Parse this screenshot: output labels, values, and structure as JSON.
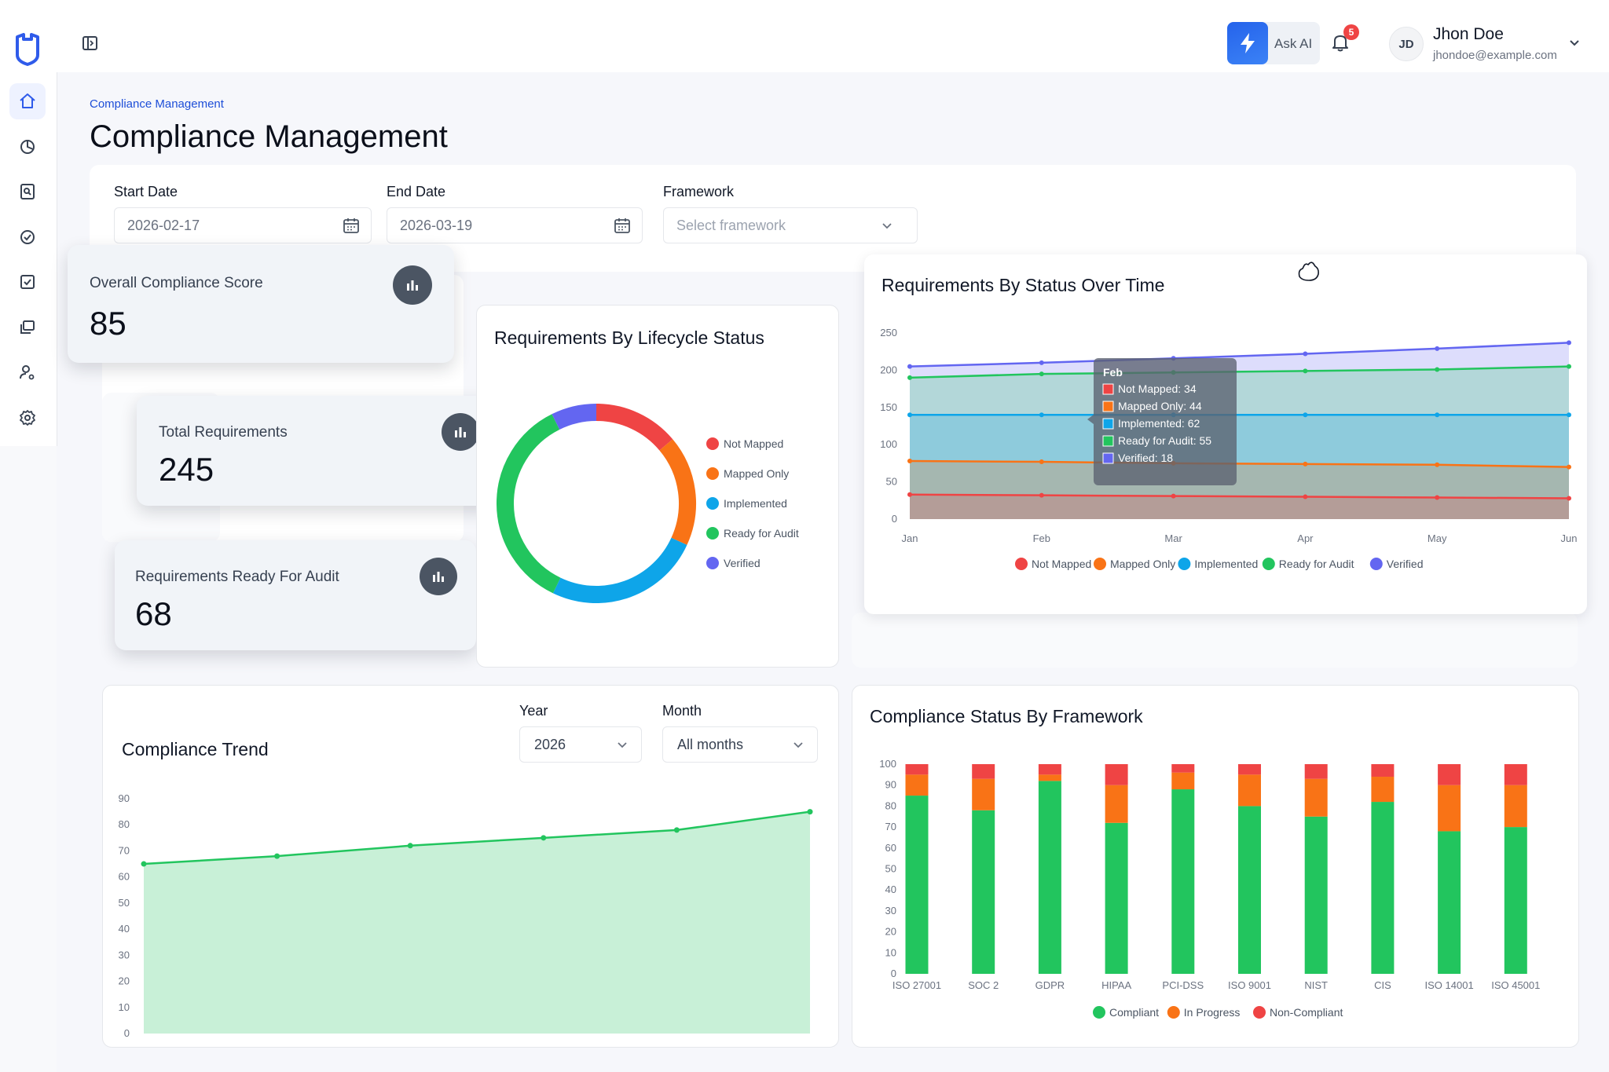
{
  "app": {
    "breadcrumb": "Compliance Management",
    "page_title": "Compliance Management"
  },
  "sidebar": {
    "items": [
      {
        "icon": "home-icon",
        "active": true
      },
      {
        "icon": "pie-chart-icon"
      },
      {
        "icon": "file-search-icon"
      },
      {
        "icon": "check-circle-icon"
      },
      {
        "icon": "check-square-icon"
      },
      {
        "icon": "layers-icon"
      },
      {
        "icon": "user-settings-icon"
      },
      {
        "icon": "gear-icon"
      }
    ]
  },
  "header": {
    "ask_ai_label": "Ask AI",
    "notification_count": "5",
    "user": {
      "initials": "JD",
      "name": "Jhon Doe",
      "email": "jhondoe@example.com"
    }
  },
  "filters": {
    "start_date_label": "Start Date",
    "start_date_value": "2026-02-17",
    "end_date_label": "End Date",
    "end_date_value": "2026-03-19",
    "framework_label": "Framework",
    "framework_placeholder": "Select framework"
  },
  "stats": {
    "overall_score_label": "Overall Compliance Score",
    "overall_score_value": "85",
    "total_requirements_label": "Total Requirements",
    "total_requirements_value": "245",
    "ready_for_audit_label": "Requirements Ready For Audit",
    "ready_for_audit_value": "68"
  },
  "trend_filters": {
    "year_label": "Year",
    "year_value": "2026",
    "month_label": "Month",
    "month_value": "All months"
  },
  "colors": {
    "not_mapped": "#ef4444",
    "mapped_only": "#f97316",
    "implemented": "#0ea5e9",
    "ready_for_audit": "#22c55e",
    "verified": "#6366f1"
  },
  "chart_data": [
    {
      "id": "lifecycle",
      "type": "pie",
      "title": "Requirements By Lifecycle Status",
      "donut": true,
      "legend_position": "right",
      "labels": [
        "Not Mapped",
        "Mapped Only",
        "Implemented",
        "Ready for Audit",
        "Verified"
      ],
      "values": [
        34,
        44,
        62,
        87,
        18
      ]
    },
    {
      "id": "status_over_time",
      "type": "area",
      "title": "Requirements By Status Over Time",
      "categories": [
        "Jan",
        "Feb",
        "Mar",
        "Apr",
        "May",
        "Jun"
      ],
      "ylim": [
        0,
        250
      ],
      "yticks": [
        0,
        50,
        100,
        150,
        200,
        250
      ],
      "legend_position": "bottom",
      "series": [
        {
          "name": "Not Mapped",
          "values": [
            33,
            32,
            31,
            30,
            29,
            28
          ]
        },
        {
          "name": "Mapped Only",
          "values": [
            78,
            77,
            75,
            74,
            73,
            70
          ]
        },
        {
          "name": "Implemented",
          "values": [
            140,
            140,
            140,
            140,
            140,
            140
          ]
        },
        {
          "name": "Ready for Audit",
          "values": [
            190,
            195,
            197,
            199,
            201,
            205
          ]
        },
        {
          "name": "Verified",
          "values": [
            205,
            210,
            216,
            222,
            229,
            237
          ]
        }
      ],
      "tooltip": {
        "title": "Feb",
        "lines": [
          "Not Mapped: 34",
          "Mapped Only: 44",
          "Implemented: 62",
          "Ready for Audit: 55",
          "Verified: 18"
        ]
      }
    },
    {
      "id": "compliance_trend",
      "type": "area",
      "title": "Compliance Trend",
      "x": [
        0,
        1,
        2,
        3,
        4,
        5
      ],
      "values": [
        65,
        68,
        72,
        75,
        78,
        85
      ],
      "ylim": [
        0,
        90
      ],
      "yticks": [
        0,
        10,
        20,
        30,
        40,
        50,
        60,
        70,
        80,
        90
      ]
    },
    {
      "id": "status_by_framework",
      "type": "bar",
      "stacked": true,
      "title": "Compliance Status By Framework",
      "categories": [
        "ISO 27001",
        "SOC 2",
        "GDPR",
        "HIPAA",
        "PCI-DSS",
        "ISO 9001",
        "NIST",
        "CIS",
        "ISO 14001",
        "ISO 45001"
      ],
      "ylim": [
        0,
        100
      ],
      "yticks": [
        0,
        10,
        20,
        30,
        40,
        50,
        60,
        70,
        80,
        90,
        100
      ],
      "legend_position": "bottom",
      "series": [
        {
          "name": "Compliant",
          "values": [
            85,
            78,
            92,
            72,
            88,
            80,
            75,
            82,
            68,
            70
          ]
        },
        {
          "name": "In Progress",
          "values": [
            10,
            15,
            3,
            18,
            8,
            15,
            18,
            12,
            22,
            20
          ]
        },
        {
          "name": "Non-Compliant",
          "values": [
            5,
            7,
            5,
            10,
            4,
            5,
            7,
            6,
            10,
            10
          ]
        }
      ]
    }
  ]
}
